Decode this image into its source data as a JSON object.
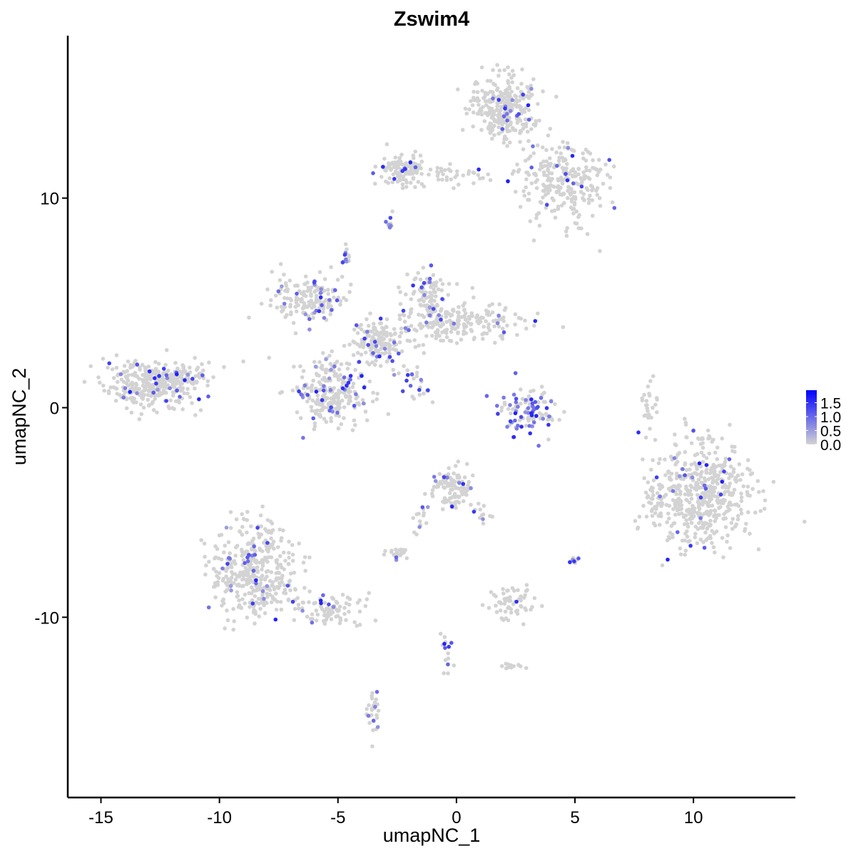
{
  "chart_data": {
    "type": "scatter",
    "title": "Zswim4",
    "xlabel": "umapNC_1",
    "ylabel": "umapNC_2",
    "xlim": [
      -16.4,
      14.3
    ],
    "ylim": [
      -18.6,
      17.75
    ],
    "xticks": [
      -15,
      -10,
      -5,
      0,
      5,
      10
    ],
    "yticks": [
      -10,
      0,
      10
    ],
    "xtick_labels": [
      "-15",
      "-10",
      "-5",
      "0",
      "5",
      "10"
    ],
    "ytick_labels": [
      "-10",
      "0",
      "10"
    ],
    "grid": false,
    "legend": {
      "placement": "right",
      "type": "colorbar",
      "range": [
        0,
        1.95
      ],
      "ticks": [
        0,
        0.5,
        1.0,
        1.5
      ],
      "tick_labels": [
        "0.0",
        "0.5",
        "1.0",
        "1.5"
      ],
      "low_color": "#D3D3D3",
      "high_color": "#0000FF"
    },
    "clusters": [
      {
        "center": [
          -12.8,
          1.1
        ],
        "spread": [
          1.0,
          0.55
        ],
        "n": 340,
        "expr_frac": 0.06
      },
      {
        "center": [
          -11.3,
          1.5
        ],
        "spread": [
          0.5,
          0.3
        ],
        "n": 40,
        "expr_frac": 0.1
      },
      {
        "center": [
          2.0,
          14.2
        ],
        "spread": [
          0.7,
          0.8
        ],
        "n": 300,
        "expr_frac": 0.05
      },
      {
        "center": [
          4.5,
          10.8
        ],
        "spread": [
          0.9,
          1.0
        ],
        "n": 260,
        "expr_frac": 0.05
      },
      {
        "center": [
          -2.3,
          11.4
        ],
        "spread": [
          0.5,
          0.35
        ],
        "n": 120,
        "expr_frac": 0.04
      },
      {
        "center": [
          0.3,
          11.1
        ],
        "spread": [
          1.2,
          0.2
        ],
        "n": 40,
        "expr_frac": 0.05
      },
      {
        "center": [
          -3.3,
          3.1
        ],
        "spread": [
          0.6,
          0.5
        ],
        "n": 150,
        "expr_frac": 0.08
      },
      {
        "center": [
          -6.1,
          5.2
        ],
        "spread": [
          0.8,
          0.6
        ],
        "n": 160,
        "expr_frac": 0.08
      },
      {
        "center": [
          -5.2,
          0.7
        ],
        "spread": [
          0.8,
          0.8
        ],
        "n": 260,
        "expr_frac": 0.1
      },
      {
        "center": [
          -1.1,
          5.2
        ],
        "spread": [
          0.45,
          0.7
        ],
        "n": 100,
        "expr_frac": 0.1
      },
      {
        "center": [
          0.2,
          4.1
        ],
        "spread": [
          1.3,
          0.45
        ],
        "n": 200,
        "expr_frac": 0.05
      },
      {
        "center": [
          -1.9,
          1.5
        ],
        "spread": [
          0.5,
          0.6
        ],
        "n": 30,
        "expr_frac": 0.3
      },
      {
        "center": [
          3.1,
          -0.1
        ],
        "spread": [
          0.6,
          0.55
        ],
        "n": 110,
        "expr_frac": 0.5
      },
      {
        "center": [
          10.4,
          -4.3
        ],
        "spread": [
          1.0,
          1.25
        ],
        "n": 520,
        "expr_frac": 0.03
      },
      {
        "center": [
          8.3,
          -4.5
        ],
        "spread": [
          0.3,
          0.5
        ],
        "n": 25,
        "expr_frac": 0.0
      },
      {
        "center": [
          -8.6,
          -7.8
        ],
        "spread": [
          0.9,
          1.1
        ],
        "n": 400,
        "expr_frac": 0.09
      },
      {
        "center": [
          -5.5,
          -9.6
        ],
        "spread": [
          0.9,
          0.35
        ],
        "n": 90,
        "expr_frac": 0.05
      },
      {
        "center": [
          -0.2,
          -3.9
        ],
        "spread": [
          0.45,
          0.55
        ],
        "n": 110,
        "expr_frac": 0.06
      },
      {
        "center": [
          2.3,
          -9.3
        ],
        "spread": [
          0.5,
          0.4
        ],
        "n": 60,
        "expr_frac": 0.03
      },
      {
        "center": [
          -2.5,
          -6.9
        ],
        "spread": [
          0.3,
          0.15
        ],
        "n": 25,
        "expr_frac": 0.05
      },
      {
        "center": [
          -3.5,
          -14.5
        ],
        "spread": [
          0.15,
          0.5
        ],
        "n": 30,
        "expr_frac": 0.1
      },
      {
        "center": [
          8.1,
          0.0
        ],
        "spread": [
          0.2,
          0.6
        ],
        "n": 25,
        "expr_frac": 0.0
      },
      {
        "center": [
          -2.8,
          8.8
        ],
        "spread": [
          0.1,
          0.2
        ],
        "n": 10,
        "expr_frac": 0.2
      },
      {
        "center": [
          -4.6,
          7.3
        ],
        "spread": [
          0.15,
          0.2
        ],
        "n": 12,
        "expr_frac": 0.4
      },
      {
        "center": [
          4.9,
          -7.3
        ],
        "spread": [
          0.1,
          0.15
        ],
        "n": 10,
        "expr_frac": 0.5
      },
      {
        "center": [
          -0.4,
          -11.4
        ],
        "spread": [
          0.15,
          0.5
        ],
        "n": 15,
        "expr_frac": 0.3
      },
      {
        "center": [
          2.3,
          -12.4
        ],
        "spread": [
          0.3,
          0.1
        ],
        "n": 12,
        "expr_frac": 0.1
      },
      {
        "center": [
          -1.5,
          -5.3
        ],
        "spread": [
          0.2,
          0.5
        ],
        "n": 15,
        "expr_frac": 0.3
      },
      {
        "center": [
          1.1,
          -5.0
        ],
        "spread": [
          0.2,
          0.4
        ],
        "n": 12,
        "expr_frac": 0.1
      }
    ]
  }
}
